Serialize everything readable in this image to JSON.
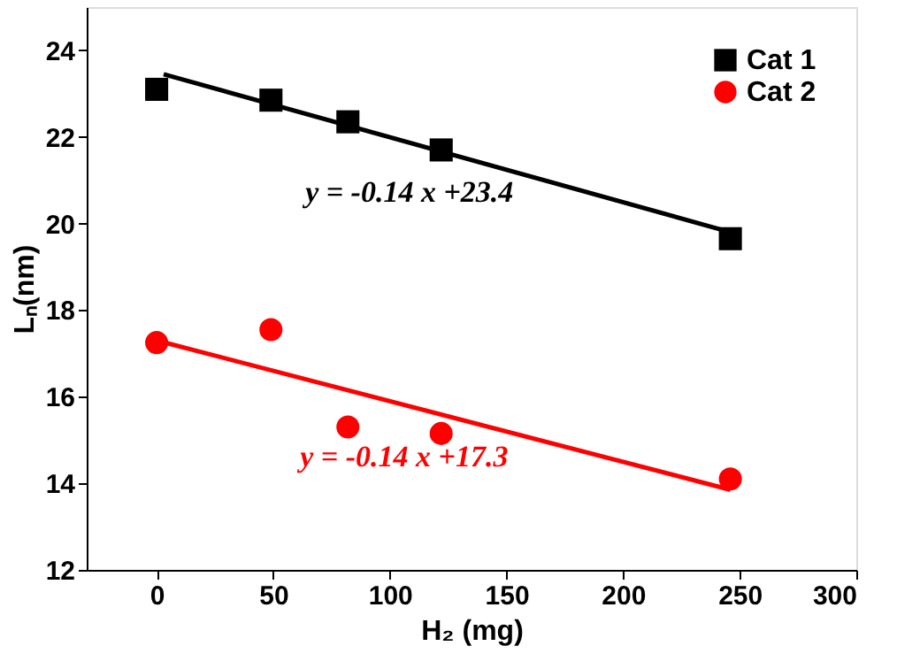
{
  "chart_data": {
    "type": "scatter",
    "xlabel": "H₂ (mg)",
    "ylabel": "Lₙ(nm)",
    "xlim": [
      -30,
      300
    ],
    "xticks": [
      0,
      50,
      100,
      150,
      200,
      250,
      300
    ],
    "ylim": [
      12,
      25
    ],
    "yticks": [
      12,
      14,
      16,
      18,
      20,
      22,
      24
    ],
    "legend": "top right",
    "grid": false,
    "series": [
      {
        "name": "Cat 1",
        "marker": "square",
        "color": "#000000",
        "x": [
          0,
          49,
          82,
          122,
          246
        ],
        "values": [
          23.1,
          22.85,
          22.35,
          21.7,
          19.65
        ]
      },
      {
        "name": "Cat 2",
        "marker": "circle",
        "color": "#ff0000",
        "x": [
          0,
          49,
          82,
          122,
          246
        ],
        "values": [
          17.25,
          17.55,
          15.3,
          15.15,
          14.1
        ]
      },
      {
        "type": "line",
        "color": "#000000",
        "x": [
          3,
          246
        ],
        "values": [
          23.45,
          19.8
        ]
      },
      {
        "type": "line",
        "color": "#ff0000",
        "x": [
          0,
          246
        ],
        "values": [
          17.3,
          13.85
        ]
      }
    ],
    "annotations": [
      "y = -0.14 x +23.4",
      "y = -0.14 x +17.3"
    ]
  }
}
